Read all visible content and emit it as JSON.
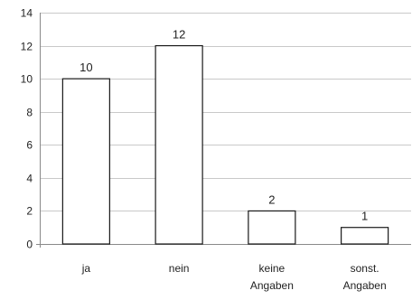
{
  "chart_data": {
    "type": "bar",
    "categories": [
      [
        "ja"
      ],
      [
        "nein"
      ],
      [
        "keine",
        "Angaben"
      ],
      [
        "sonst.",
        "Angaben"
      ]
    ],
    "values": [
      10,
      12,
      2,
      1
    ],
    "data_labels": [
      "10",
      "12",
      "2",
      "1"
    ],
    "ylim": [
      0,
      14
    ],
    "yticks": [
      0,
      2,
      4,
      6,
      8,
      10,
      12,
      14
    ],
    "grid": true,
    "legend": "none",
    "title": "",
    "xlabel": "",
    "ylabel": "",
    "colors": {
      "bar_fill": "#ffffff",
      "bar_stroke": "#1a1a1a",
      "grid": "#c9c9c9"
    }
  }
}
